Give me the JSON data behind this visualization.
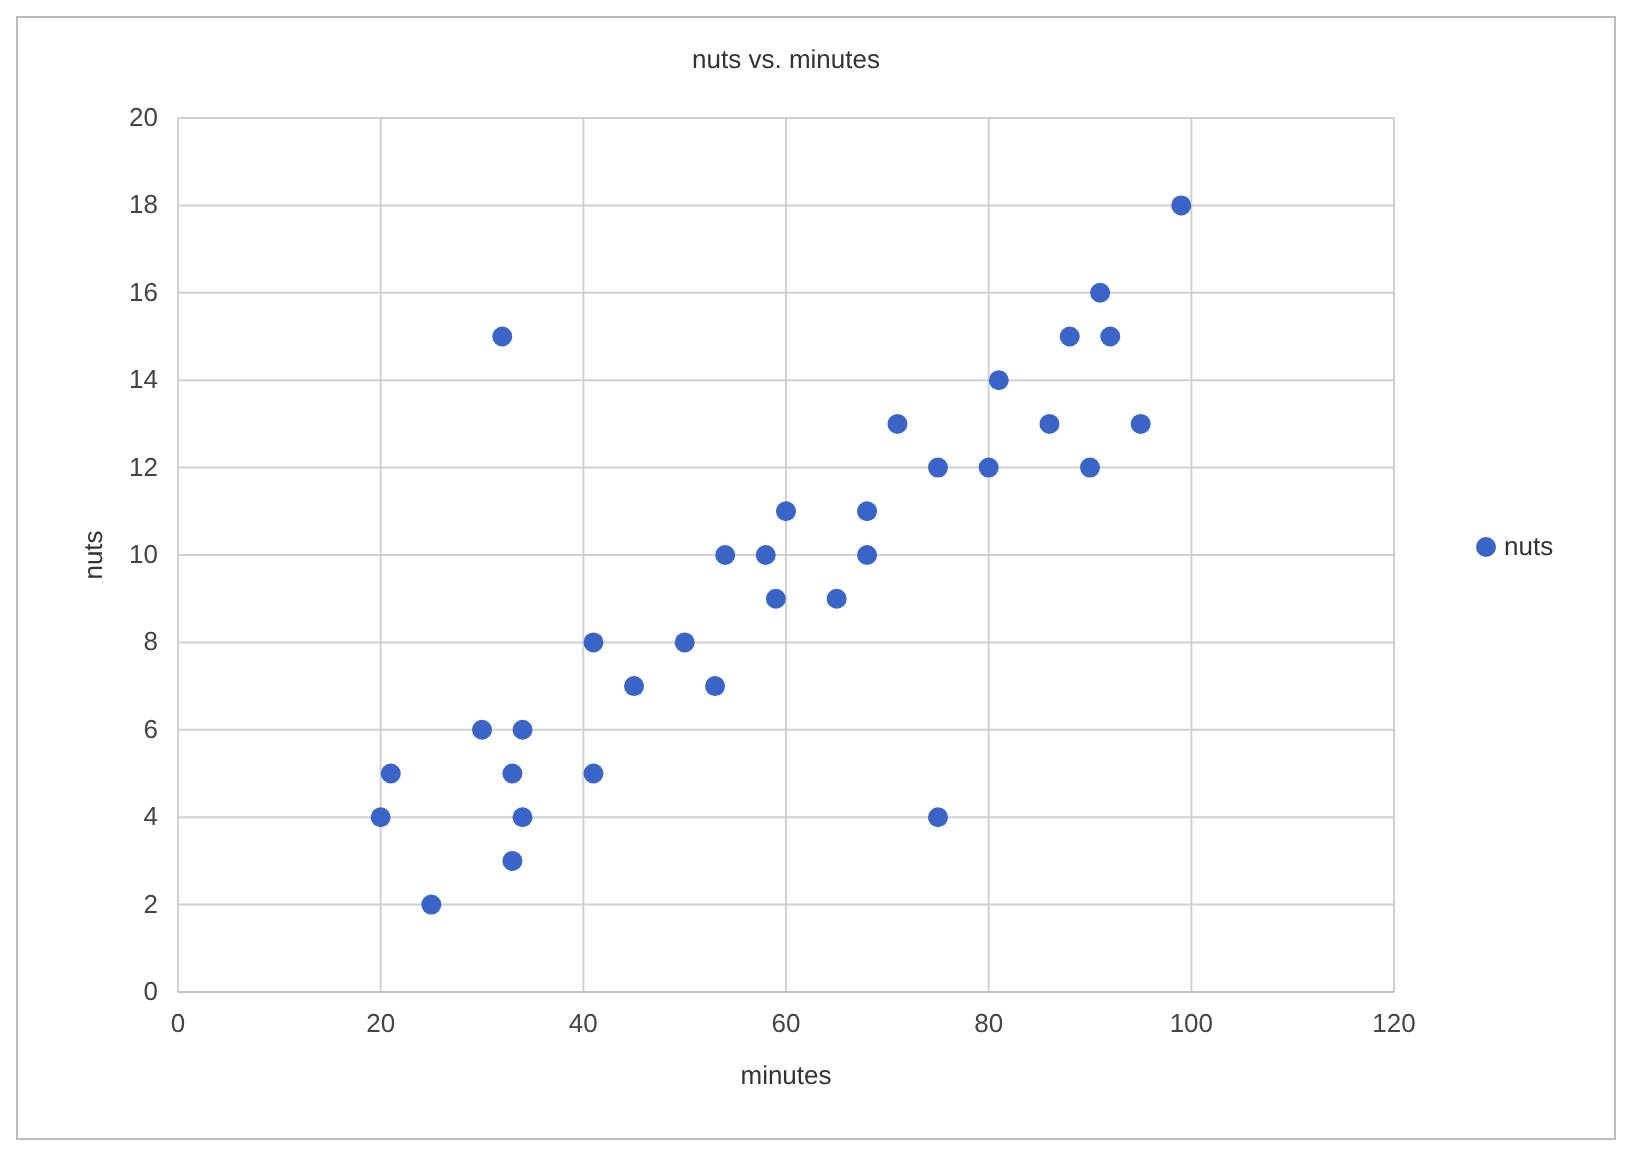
{
  "chart_data": {
    "type": "scatter",
    "title": "nuts vs. minutes",
    "xlabel": "minutes",
    "ylabel": "nuts",
    "x": [
      20,
      21,
      25,
      30,
      32,
      33,
      33,
      34,
      34,
      41,
      41,
      45,
      50,
      53,
      54,
      58,
      59,
      60,
      65,
      68,
      68,
      71,
      75,
      75,
      80,
      81,
      86,
      88,
      91,
      92,
      90,
      95,
      99
    ],
    "series": [
      {
        "name": "nuts",
        "color": "#3a64c8",
        "values": [
          4,
          5,
          2,
          6,
          15,
          5,
          3,
          6,
          4,
          8,
          5,
          7,
          8,
          7,
          10,
          10,
          9,
          11,
          9,
          11,
          10,
          13,
          12,
          4,
          12,
          14,
          13,
          15,
          16,
          15,
          12,
          13,
          18
        ]
      }
    ],
    "xlim": [
      0,
      120
    ],
    "xticks": [
      0,
      20,
      40,
      60,
      80,
      100,
      120
    ],
    "ylim": [
      0,
      20
    ],
    "yticks": [
      0,
      2,
      4,
      6,
      8,
      10,
      12,
      14,
      16,
      18,
      20
    ],
    "grid": true,
    "legend": "right",
    "marker": "circle"
  }
}
